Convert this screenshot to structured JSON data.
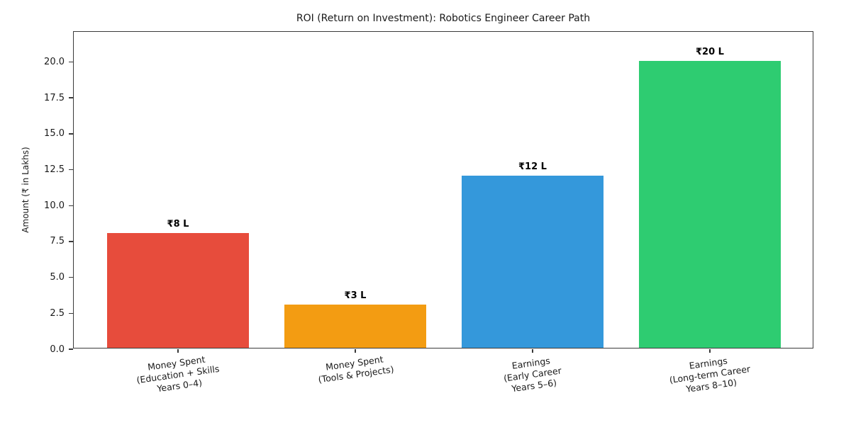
{
  "chart_data": {
    "type": "bar",
    "title": "ROI (Return on Investment): Robotics Engineer Career Path",
    "xlabel": "",
    "ylabel": "Amount (₹ in Lakhs)",
    "categories": [
      "Money Spent\n(Education + Skills\nYears 0–4)",
      "Money Spent\n(Tools & Projects)",
      "Earnings\n(Early Career\nYears 5–6)",
      "Earnings\n(Long-term Career\nYears 8–10)"
    ],
    "values": [
      8,
      3,
      12,
      20
    ],
    "bar_labels": [
      "₹8 L",
      "₹3 L",
      "₹12 L",
      "₹20 L"
    ],
    "bar_colors": [
      "#e74c3c",
      "#f39c12",
      "#3498db",
      "#2ecc71"
    ],
    "yticks": [
      0.0,
      2.5,
      5.0,
      7.5,
      10.0,
      12.5,
      15.0,
      17.5,
      20.0
    ],
    "ylim": [
      0,
      22.1
    ],
    "grid": false,
    "legend_position": "none",
    "x_tick_rotation_deg": 8,
    "colors": {
      "background": "#ffffff",
      "spine": "#3a3a3a",
      "text": "#1a1a1a",
      "value_label": "#000000"
    }
  }
}
